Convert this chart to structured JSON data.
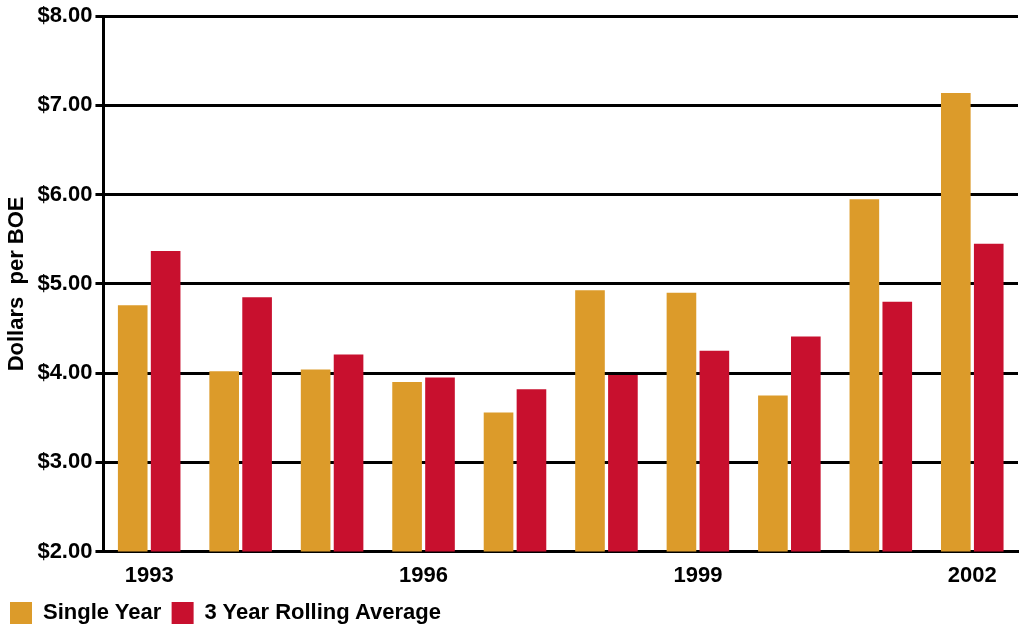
{
  "chart_data": {
    "type": "bar",
    "ylabel": "Dollars  per BOE",
    "categories": [
      "1993",
      null,
      null,
      "1996",
      null,
      null,
      "1999",
      null,
      null,
      "2002"
    ],
    "series": [
      {
        "name": "Single Year",
        "color": "#dc9b2a",
        "values": [
          4.76,
          4.02,
          4.04,
          3.9,
          3.56,
          4.93,
          4.9,
          3.75,
          5.95,
          7.14
        ]
      },
      {
        "name": "3 Year Rolling Average",
        "color": "#c8102e",
        "values": [
          5.37,
          4.85,
          4.21,
          3.95,
          3.82,
          3.98,
          4.25,
          4.41,
          4.8,
          5.45
        ]
      }
    ],
    "ylim": [
      2,
      8
    ],
    "yticks": [
      {
        "value": 2,
        "label": "$2.00"
      },
      {
        "value": 3,
        "label": "$3.00"
      },
      {
        "value": 4,
        "label": "$4.00"
      },
      {
        "value": 5,
        "label": "$5.00"
      },
      {
        "value": 6,
        "label": "$6.00"
      },
      {
        "value": 7,
        "label": "$7.00"
      },
      {
        "value": 8,
        "label": "$8.00"
      }
    ],
    "grid": "y",
    "legend": "bottom left"
  }
}
